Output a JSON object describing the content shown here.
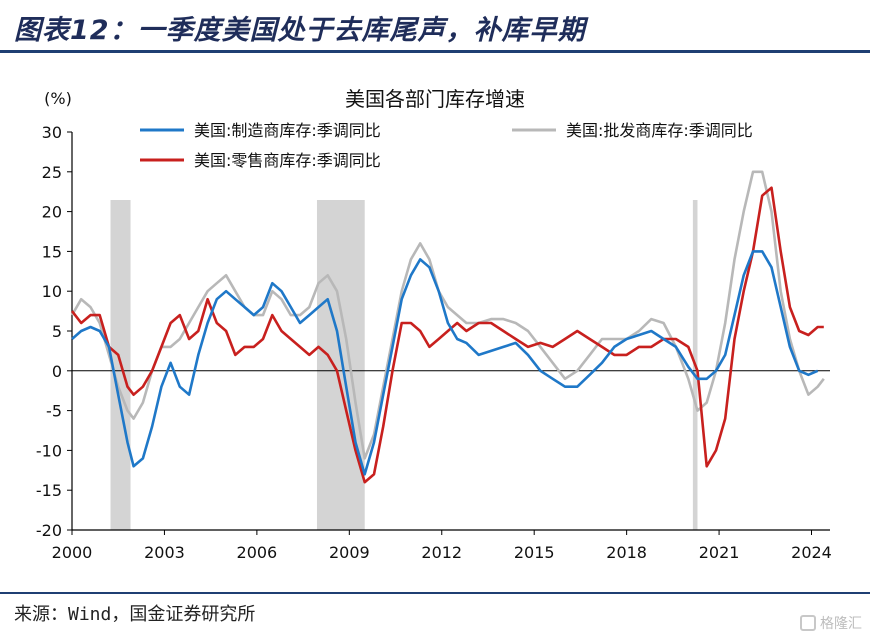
{
  "figure_title": "图表12：一季度美国处于去库尾声，补库早期",
  "source_note": "来源：Wind，国金证券研究所",
  "watermark": "格隆汇",
  "chart_data": {
    "type": "line",
    "title": "美国各部门库存增速",
    "ylabel": "(%)",
    "xlabel": "",
    "xlim": [
      2000,
      2024.6
    ],
    "ylim": [
      -20,
      30
    ],
    "x_ticks": [
      2000,
      2003,
      2006,
      2009,
      2012,
      2015,
      2018,
      2021,
      2024
    ],
    "y_ticks": [
      30,
      25,
      20,
      15,
      10,
      5,
      0,
      -5,
      -10,
      -15,
      -20
    ],
    "recession_bands": [
      [
        2001.25,
        2001.9
      ],
      [
        2007.95,
        2009.5
      ],
      [
        2020.15,
        2020.3
      ]
    ],
    "series": [
      {
        "name": "美国:制造商库存:季调同比",
        "color": "#1f78c8",
        "x": [
          2000.0,
          2000.3,
          2000.6,
          2000.9,
          2001.2,
          2001.5,
          2001.8,
          2002.0,
          2002.3,
          2002.6,
          2002.9,
          2003.2,
          2003.5,
          2003.8,
          2004.1,
          2004.4,
          2004.7,
          2005.0,
          2005.3,
          2005.6,
          2005.9,
          2006.2,
          2006.5,
          2006.8,
          2007.1,
          2007.4,
          2007.7,
          2008.0,
          2008.3,
          2008.6,
          2008.9,
          2009.2,
          2009.5,
          2009.8,
          2010.1,
          2010.4,
          2010.7,
          2011.0,
          2011.3,
          2011.6,
          2011.9,
          2012.2,
          2012.5,
          2012.8,
          2013.2,
          2013.6,
          2014.0,
          2014.4,
          2014.8,
          2015.2,
          2015.6,
          2016.0,
          2016.4,
          2016.8,
          2017.2,
          2017.6,
          2018.0,
          2018.4,
          2018.8,
          2019.2,
          2019.6,
          2020.0,
          2020.3,
          2020.6,
          2020.9,
          2021.2,
          2021.5,
          2021.8,
          2022.1,
          2022.4,
          2022.7,
          2023.0,
          2023.3,
          2023.6,
          2023.9,
          2024.2
        ],
        "values": [
          4,
          5,
          5.5,
          5,
          3,
          -3,
          -9,
          -12,
          -11,
          -7,
          -2,
          1,
          -2,
          -3,
          2,
          6,
          9,
          10,
          9,
          8,
          7,
          8,
          11,
          10,
          8,
          6,
          7,
          8,
          9,
          5,
          -2,
          -9,
          -13,
          -9,
          -3,
          3,
          9,
          12,
          14,
          13,
          10,
          6,
          4,
          3.5,
          2,
          2.5,
          3,
          3.5,
          2,
          0,
          -1,
          -2,
          -2,
          -0.5,
          1,
          3,
          4,
          4.5,
          5,
          4,
          3,
          0.5,
          -1,
          -1,
          0,
          2,
          7,
          12,
          15,
          15,
          13,
          8,
          3,
          0,
          -0.5,
          0
        ]
      },
      {
        "name": "美国:批发商库存:季调同比",
        "color": "#b8b8b8",
        "x": [
          2000.0,
          2000.3,
          2000.6,
          2000.9,
          2001.2,
          2001.5,
          2001.8,
          2002.0,
          2002.3,
          2002.6,
          2002.9,
          2003.2,
          2003.5,
          2003.8,
          2004.1,
          2004.4,
          2004.7,
          2005.0,
          2005.3,
          2005.6,
          2005.9,
          2006.2,
          2006.5,
          2006.8,
          2007.1,
          2007.4,
          2007.7,
          2008.0,
          2008.3,
          2008.6,
          2008.9,
          2009.2,
          2009.5,
          2009.8,
          2010.1,
          2010.4,
          2010.7,
          2011.0,
          2011.3,
          2011.6,
          2011.9,
          2012.2,
          2012.5,
          2012.8,
          2013.2,
          2013.6,
          2014.0,
          2014.4,
          2014.8,
          2015.2,
          2015.6,
          2016.0,
          2016.4,
          2016.8,
          2017.2,
          2017.6,
          2018.0,
          2018.4,
          2018.8,
          2019.2,
          2019.6,
          2020.0,
          2020.3,
          2020.6,
          2020.9,
          2021.2,
          2021.5,
          2021.8,
          2022.1,
          2022.4,
          2022.7,
          2023.0,
          2023.3,
          2023.6,
          2023.9,
          2024.2,
          2024.4
        ],
        "values": [
          7,
          9,
          8,
          6,
          2,
          -2,
          -5,
          -6,
          -4,
          0,
          3,
          3,
          4,
          6,
          8,
          10,
          11,
          12,
          10,
          8,
          7,
          7,
          10,
          9,
          7,
          7,
          8,
          11,
          12,
          10,
          4,
          -4,
          -11,
          -8,
          -2,
          4,
          10,
          14,
          16,
          14,
          10,
          8,
          7,
          6,
          6,
          6.5,
          6.5,
          6,
          5,
          3,
          1,
          -1,
          0,
          2,
          4,
          4,
          4,
          5,
          6.5,
          6,
          3,
          -1,
          -5,
          -4,
          0,
          6,
          14,
          20,
          25,
          25,
          20,
          10,
          4,
          0,
          -3,
          -2,
          -1
        ]
      },
      {
        "name": "美国:零售商库存:季调同比",
        "color": "#c8201e",
        "x": [
          2000.0,
          2000.3,
          2000.6,
          2000.9,
          2001.2,
          2001.5,
          2001.8,
          2002.0,
          2002.3,
          2002.6,
          2002.9,
          2003.2,
          2003.5,
          2003.8,
          2004.1,
          2004.4,
          2004.7,
          2005.0,
          2005.3,
          2005.6,
          2005.9,
          2006.2,
          2006.5,
          2006.8,
          2007.1,
          2007.4,
          2007.7,
          2008.0,
          2008.3,
          2008.6,
          2008.9,
          2009.2,
          2009.5,
          2009.8,
          2010.1,
          2010.4,
          2010.7,
          2011.0,
          2011.3,
          2011.6,
          2011.9,
          2012.2,
          2012.5,
          2012.8,
          2013.2,
          2013.6,
          2014.0,
          2014.4,
          2014.8,
          2015.2,
          2015.6,
          2016.0,
          2016.4,
          2016.8,
          2017.2,
          2017.6,
          2018.0,
          2018.4,
          2018.8,
          2019.2,
          2019.6,
          2020.0,
          2020.3,
          2020.6,
          2020.9,
          2021.2,
          2021.5,
          2021.8,
          2022.1,
          2022.4,
          2022.7,
          2023.0,
          2023.3,
          2023.6,
          2023.9,
          2024.2,
          2024.4
        ],
        "values": [
          7.5,
          6,
          7,
          7,
          3,
          2,
          -2,
          -3,
          -2,
          0,
          3,
          6,
          7,
          4,
          5,
          9,
          6,
          5,
          2,
          3,
          3,
          4,
          7,
          5,
          4,
          3,
          2,
          3,
          2,
          0,
          -5,
          -10,
          -14,
          -13,
          -7,
          0,
          6,
          6,
          5,
          3,
          4,
          5,
          6,
          5,
          6,
          6,
          5,
          4,
          3,
          3.5,
          3,
          4,
          5,
          4,
          3,
          2,
          2,
          3,
          3,
          4,
          4,
          3,
          0,
          -12,
          -10,
          -6,
          4,
          10,
          15,
          22,
          23,
          15,
          8,
          5,
          4.5,
          5.5,
          5.5
        ]
      }
    ]
  }
}
